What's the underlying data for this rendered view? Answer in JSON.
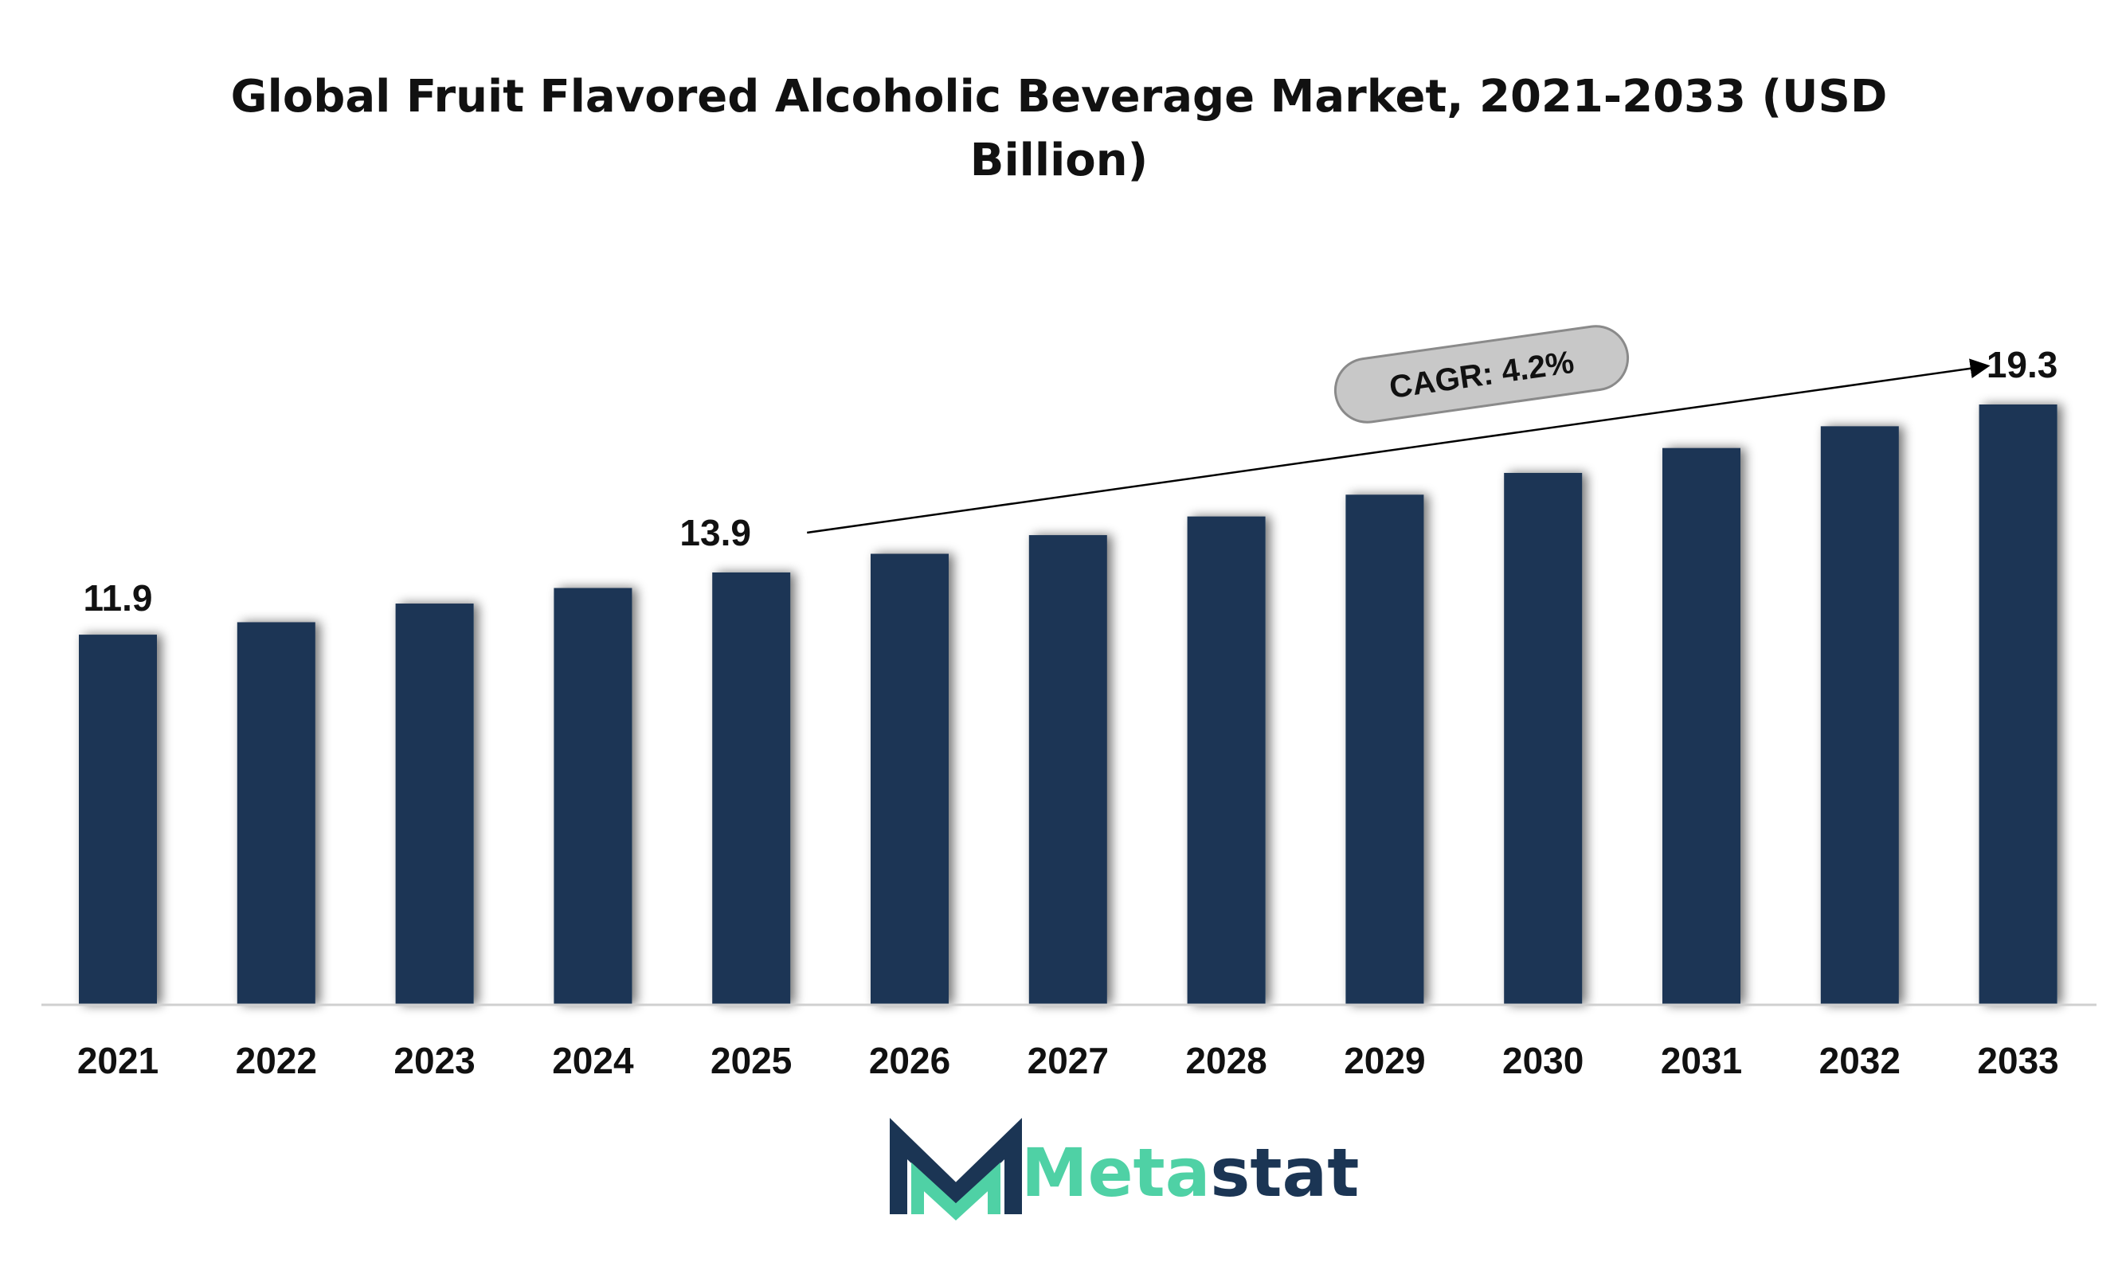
{
  "chart_data": {
    "type": "bar",
    "title": "Global Fruit Flavored Alcoholic Beverage Market, 2021-2033 (USD Billion)",
    "xlabel": "",
    "ylabel": "",
    "categories": [
      "2021",
      "2022",
      "2023",
      "2024",
      "2025",
      "2026",
      "2027",
      "2028",
      "2029",
      "2030",
      "2031",
      "2032",
      "2033"
    ],
    "values": [
      11.9,
      12.3,
      12.9,
      13.4,
      13.9,
      14.5,
      15.1,
      15.7,
      16.4,
      17.1,
      17.9,
      18.6,
      19.3
    ],
    "data_labels": [
      {
        "index": 0,
        "text": "11.9"
      },
      {
        "index": 4,
        "text": "13.9"
      },
      {
        "index": 12,
        "text": "19.3"
      }
    ],
    "annotation": {
      "text": "CAGR: 4.2%",
      "from_index": 4,
      "to_index": 12
    },
    "ylim": [
      0,
      19.3
    ],
    "bar_color": "#1b3554",
    "grid": false,
    "legend": "none"
  },
  "branding": {
    "logo_text_part1": "Meta",
    "logo_text_part2": "stat",
    "color_part1": "#4fd1a5",
    "color_part2": "#1b3554"
  }
}
